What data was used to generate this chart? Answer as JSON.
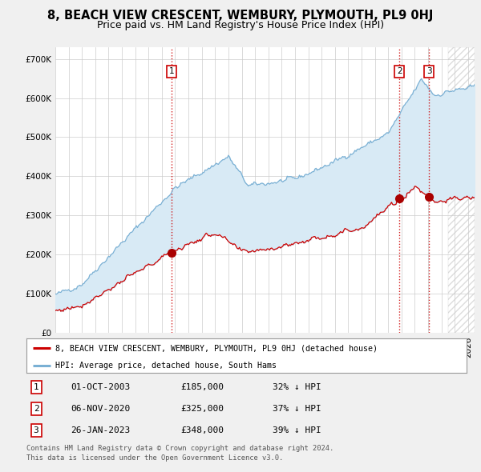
{
  "title": "8, BEACH VIEW CRESCENT, WEMBURY, PLYMOUTH, PL9 0HJ",
  "subtitle": "Price paid vs. HM Land Registry's House Price Index (HPI)",
  "ylabel_ticks": [
    "£0",
    "£100K",
    "£200K",
    "£300K",
    "£400K",
    "£500K",
    "£600K",
    "£700K"
  ],
  "ytick_values": [
    0,
    100000,
    200000,
    300000,
    400000,
    500000,
    600000,
    700000
  ],
  "ylim": [
    0,
    730000
  ],
  "xlim_start": 1995.0,
  "xlim_end": 2026.5,
  "red_line_color": "#cc0000",
  "blue_line_color": "#7ab0d4",
  "fill_color": "#d8eaf5",
  "sale_marker_color": "#aa0000",
  "vline_color": "#cc0000",
  "background_color": "#f0f0f0",
  "plot_bg_color": "#ffffff",
  "legend_label_red": "8, BEACH VIEW CRESCENT, WEMBURY, PLYMOUTH, PL9 0HJ (detached house)",
  "legend_label_blue": "HPI: Average price, detached house, South Hams",
  "sales": [
    {
      "num": 1,
      "date_x": 2003.75,
      "price": 185000,
      "label": "01-OCT-2003",
      "pct": "32% ↓ HPI"
    },
    {
      "num": 2,
      "date_x": 2020.84,
      "price": 325000,
      "label": "06-NOV-2020",
      "pct": "37% ↓ HPI"
    },
    {
      "num": 3,
      "date_x": 2023.07,
      "price": 348000,
      "label": "26-JAN-2023",
      "pct": "39% ↓ HPI"
    }
  ],
  "footer_line1": "Contains HM Land Registry data © Crown copyright and database right 2024.",
  "footer_line2": "This data is licensed under the Open Government Licence v3.0.",
  "title_fontsize": 10.5,
  "subtitle_fontsize": 9,
  "axis_fontsize": 7.5,
  "hatch_start": 2024.5
}
